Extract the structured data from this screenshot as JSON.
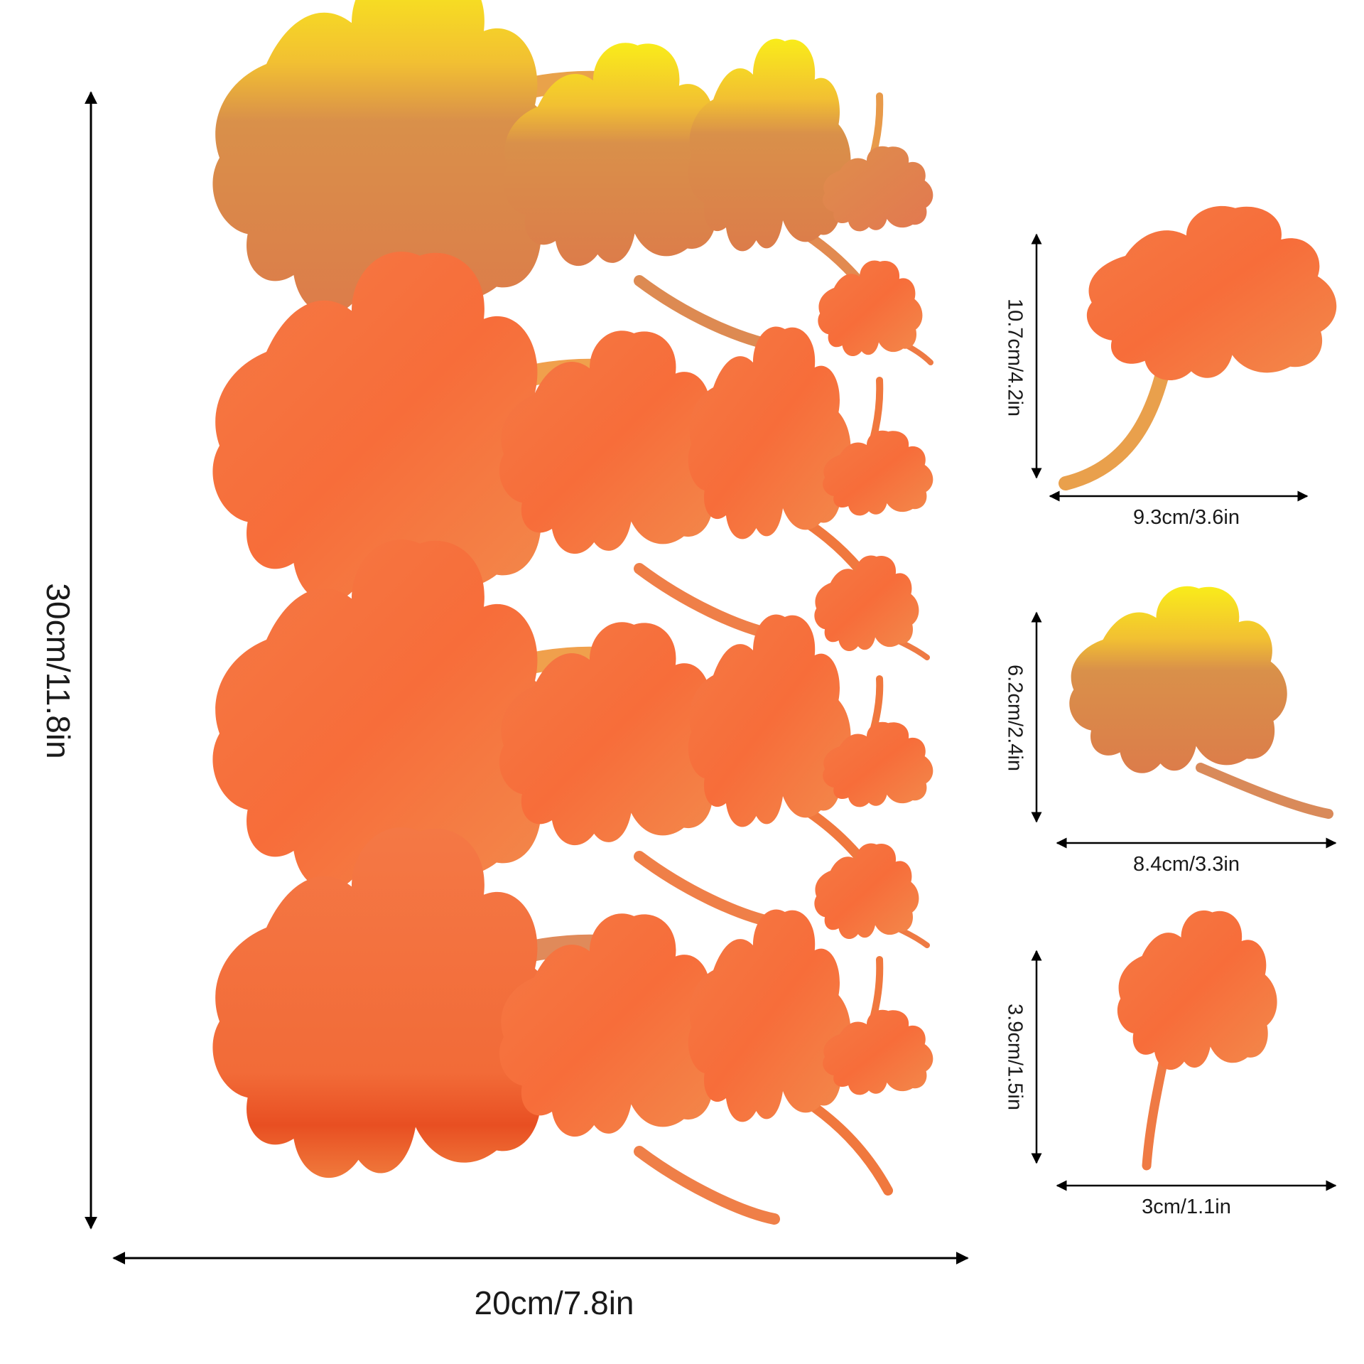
{
  "dimensions": {
    "main_height": "30cm/11.8in",
    "main_width": "20cm/7.8in",
    "leaf_large": {
      "height": "10.7cm/4.2in",
      "width": "9.3cm/3.6in"
    },
    "leaf_medium": {
      "height": "6.2cm/2.4in",
      "width": "8.4cm/3.3in"
    },
    "leaf_small": {
      "height": "3.9cm/1.5in",
      "width": "3cm/1.1in"
    }
  },
  "colors": {
    "leaf_yellow": "#f7e61c",
    "leaf_tan": "#d9904a",
    "leaf_orange": "#f5763f",
    "leaf_deep": "#e85a2a",
    "arrow": "#000000"
  }
}
